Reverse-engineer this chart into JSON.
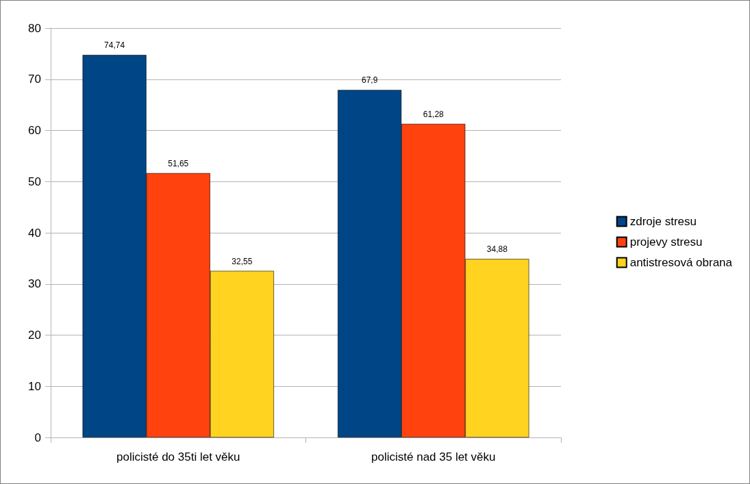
{
  "chart_data": {
    "type": "bar",
    "categories": [
      "policisté do 35ti let věku",
      "policisté nad 35 let věku"
    ],
    "series": [
      {
        "name": "zdroje stresu",
        "color": "#004586",
        "values": [
          74.74,
          67.9
        ],
        "value_labels": [
          "74,74",
          "67,9"
        ]
      },
      {
        "name": "projevy stresu",
        "color": "#ff420e",
        "values": [
          51.65,
          61.28
        ],
        "value_labels": [
          "51,65",
          "61,28"
        ]
      },
      {
        "name": "antistresová obrana",
        "color": "#ffd320",
        "values": [
          32.55,
          34.88
        ],
        "value_labels": [
          "32,55",
          "34,88"
        ]
      }
    ],
    "ylim": [
      0,
      80
    ],
    "yticks": [
      0,
      10,
      20,
      30,
      40,
      50,
      60,
      70,
      80
    ],
    "grid": "y",
    "legend": "right"
  }
}
